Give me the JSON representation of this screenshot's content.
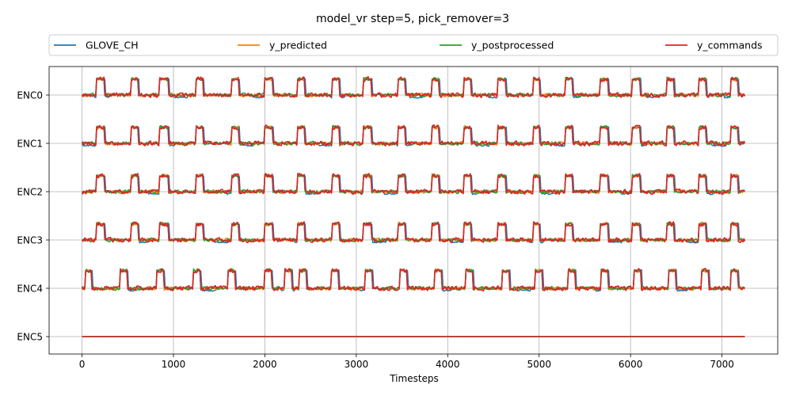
{
  "chart_data": {
    "type": "line",
    "title": "model_vr step=5, pick_remover=3",
    "xlabel": "Timesteps",
    "ylabel": "",
    "xlim": [
      -360,
      7610
    ],
    "xticks": [
      0,
      1000,
      2000,
      3000,
      4000,
      5000,
      6000,
      7000
    ],
    "categories": [
      "ENC0",
      "ENC1",
      "ENC2",
      "ENC3",
      "ENC4",
      "ENC5"
    ],
    "grid": true,
    "legend": {
      "placement": "top",
      "columns": 4
    },
    "x_range": [
      0,
      7250
    ],
    "series": [
      {
        "name": "GLOVE_CH",
        "color": "#1f77b4"
      },
      {
        "name": "y_predicted",
        "color": "#ff7f0e"
      },
      {
        "name": "y_postprocessed",
        "color": "#2ca02c"
      },
      {
        "name": "y_commands",
        "color": "#d62728"
      }
    ],
    "channel_signals": [
      {
        "channel": "ENC0",
        "baseline": 0,
        "pulse_level": 0.36,
        "pulses": [
          [
            160,
            250
          ],
          [
            540,
            620
          ],
          [
            850,
            950
          ],
          [
            1250,
            1330
          ],
          [
            1640,
            1720
          ],
          [
            2000,
            2090
          ],
          [
            2360,
            2440
          ],
          [
            2740,
            2820
          ],
          [
            3080,
            3170
          ],
          [
            3460,
            3540
          ],
          [
            3830,
            3910
          ],
          [
            4180,
            4260
          ],
          [
            4550,
            4640
          ],
          [
            4940,
            5010
          ],
          [
            5290,
            5370
          ],
          [
            5670,
            5760
          ],
          [
            6020,
            6110
          ],
          [
            6400,
            6480
          ],
          [
            6750,
            6830
          ],
          [
            7100,
            7180
          ]
        ]
      },
      {
        "channel": "ENC1",
        "baseline": 0,
        "pulse_level": 0.36,
        "pulses": [
          [
            160,
            250
          ],
          [
            540,
            620
          ],
          [
            850,
            950
          ],
          [
            1250,
            1330
          ],
          [
            1640,
            1720
          ],
          [
            2000,
            2090
          ],
          [
            2360,
            2440
          ],
          [
            2740,
            2820
          ],
          [
            3080,
            3170
          ],
          [
            3460,
            3540
          ],
          [
            3830,
            3910
          ],
          [
            4180,
            4260
          ],
          [
            4550,
            4640
          ],
          [
            4940,
            5010
          ],
          [
            5290,
            5370
          ],
          [
            5670,
            5760
          ],
          [
            6020,
            6110
          ],
          [
            6400,
            6480
          ],
          [
            6750,
            6830
          ],
          [
            7100,
            7180
          ]
        ]
      },
      {
        "channel": "ENC2",
        "baseline": 0,
        "pulse_level": 0.36,
        "pulses": [
          [
            160,
            250
          ],
          [
            540,
            620
          ],
          [
            850,
            950
          ],
          [
            1250,
            1330
          ],
          [
            1640,
            1720
          ],
          [
            2000,
            2090
          ],
          [
            2360,
            2440
          ],
          [
            2740,
            2820
          ],
          [
            3080,
            3170
          ],
          [
            3460,
            3540
          ],
          [
            3830,
            3910
          ],
          [
            4180,
            4260
          ],
          [
            4550,
            4640
          ],
          [
            4940,
            5010
          ],
          [
            5290,
            5370
          ],
          [
            5670,
            5760
          ],
          [
            6020,
            6110
          ],
          [
            6400,
            6480
          ],
          [
            6750,
            6830
          ],
          [
            7100,
            7180
          ]
        ]
      },
      {
        "channel": "ENC3",
        "baseline": 0,
        "pulse_level": 0.36,
        "pulses": [
          [
            160,
            250
          ],
          [
            540,
            620
          ],
          [
            850,
            950
          ],
          [
            1250,
            1330
          ],
          [
            1640,
            1720
          ],
          [
            2000,
            2090
          ],
          [
            2360,
            2440
          ],
          [
            2740,
            2820
          ],
          [
            3080,
            3170
          ],
          [
            3460,
            3540
          ],
          [
            3830,
            3910
          ],
          [
            4180,
            4260
          ],
          [
            4550,
            4640
          ],
          [
            4940,
            5010
          ],
          [
            5290,
            5370
          ],
          [
            5670,
            5760
          ],
          [
            6020,
            6110
          ],
          [
            6400,
            6480
          ],
          [
            6750,
            6830
          ],
          [
            7100,
            7180
          ]
        ]
      },
      {
        "channel": "ENC4",
        "baseline": 0,
        "pulse_level": 0.4,
        "pulses": [
          [
            40,
            110
          ],
          [
            420,
            500
          ],
          [
            820,
            900
          ],
          [
            1220,
            1300
          ],
          [
            1600,
            1680
          ],
          [
            2000,
            2080
          ],
          [
            2220,
            2300
          ],
          [
            2380,
            2460
          ],
          [
            2730,
            2810
          ],
          [
            3100,
            3180
          ],
          [
            3480,
            3560
          ],
          [
            3860,
            3940
          ],
          [
            4200,
            4280
          ],
          [
            4600,
            4680
          ],
          [
            4960,
            5040
          ],
          [
            5320,
            5400
          ],
          [
            5680,
            5760
          ],
          [
            6040,
            6120
          ],
          [
            6420,
            6500
          ],
          [
            6780,
            6860
          ],
          [
            7100,
            7180
          ]
        ]
      },
      {
        "channel": "ENC5",
        "baseline": 0,
        "pulse_level": 0,
        "pulses": []
      }
    ]
  }
}
